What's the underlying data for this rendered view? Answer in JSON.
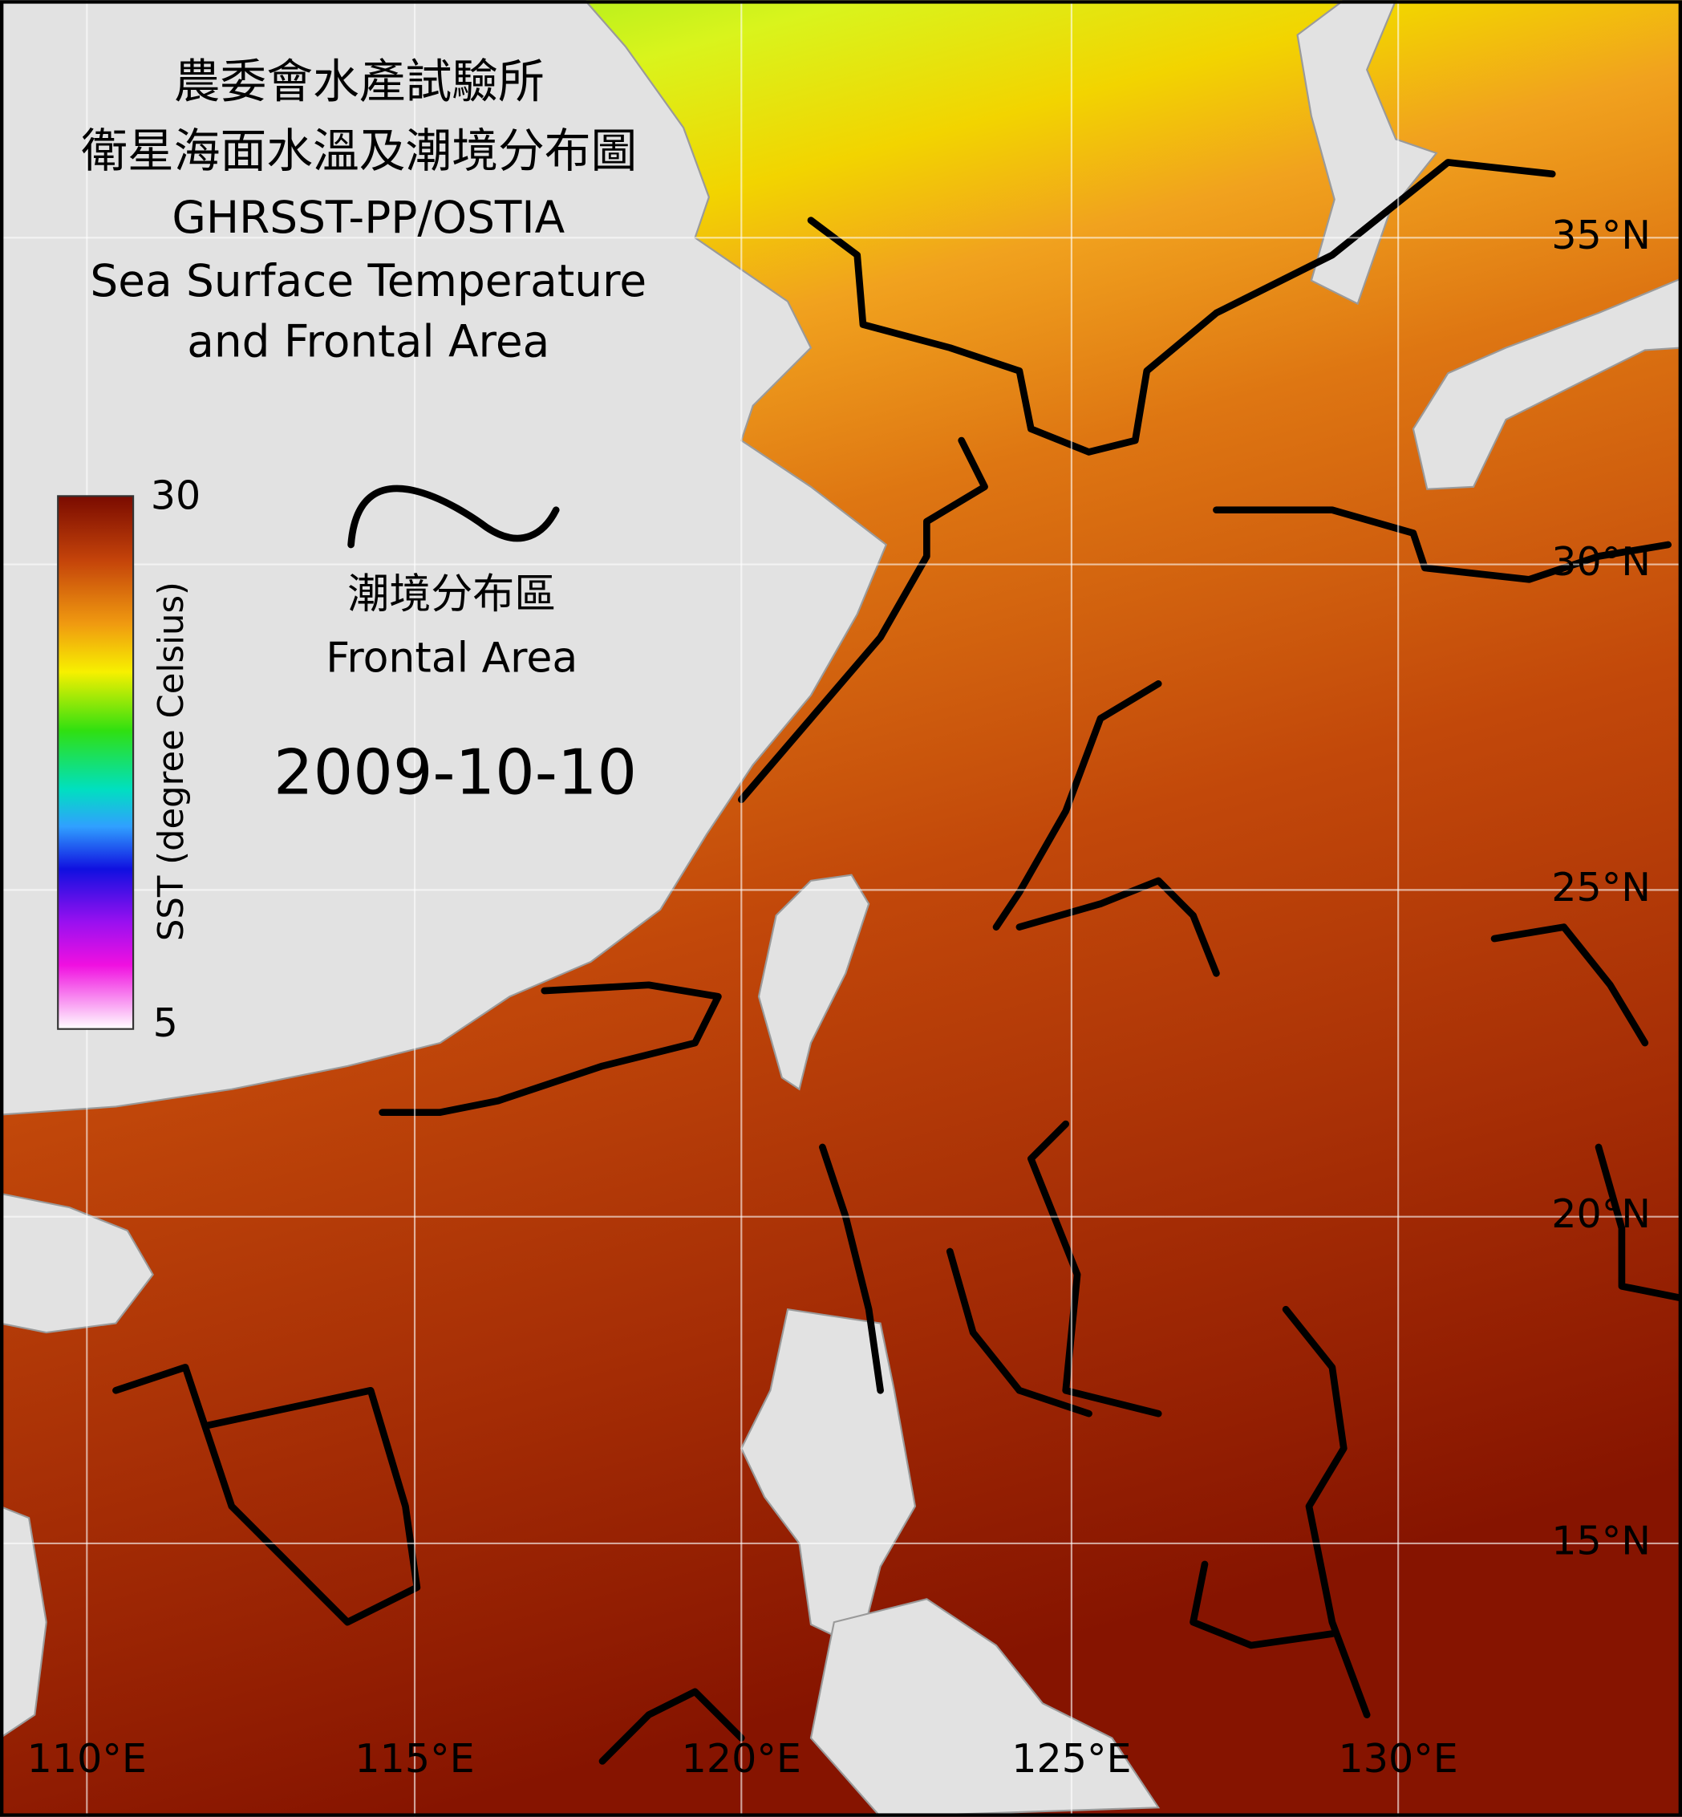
{
  "header": {
    "title_lines": [
      "農委會水產試驗所",
      "衛星海面水溫及潮境分布圖",
      "GHRSST-PP/OSTIA",
      "Sea Surface Temperature",
      "and Frontal Area"
    ]
  },
  "colorbar": {
    "label": "SST (degree Celsius)",
    "max": 30,
    "min": 5
  },
  "legend": {
    "label_zh": "潮境分布區",
    "label_en": "Frontal Area"
  },
  "date": "2009-10-10",
  "lat_labels": [
    "35°N",
    "30°N",
    "25°N",
    "20°N",
    "15°N"
  ],
  "lon_labels": [
    "110°E",
    "115°E",
    "120°E",
    "125°E",
    "130°E"
  ]
}
